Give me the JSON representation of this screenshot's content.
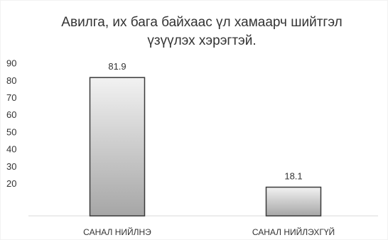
{
  "chart_data": {
    "type": "bar",
    "title_lines": [
      "Авилга, их бага байхаас үл хамаарч шийтгэл",
      "үзүүлэх хэрэгтэй."
    ],
    "categories": [
      "САНАЛ НИЙЛНЭ",
      "САНАЛ НИЙЛЭХГҮЙ"
    ],
    "values": [
      81.9,
      18.1
    ],
    "data_labels": [
      "81.9",
      "18.1"
    ],
    "yticks": [
      "20",
      "30",
      "40",
      "50",
      "60",
      "70",
      "80",
      "90"
    ],
    "ylim": [
      10,
      90
    ],
    "xlabel": "",
    "ylabel": "",
    "grid": false,
    "legend": "none",
    "colors": {
      "bar_fill_top": "#f2f2f2",
      "bar_fill_bottom": "#a6a6a6",
      "bar_stroke": "#3a3a3a",
      "axis": "#d9d9d9",
      "text": "#333333"
    }
  }
}
